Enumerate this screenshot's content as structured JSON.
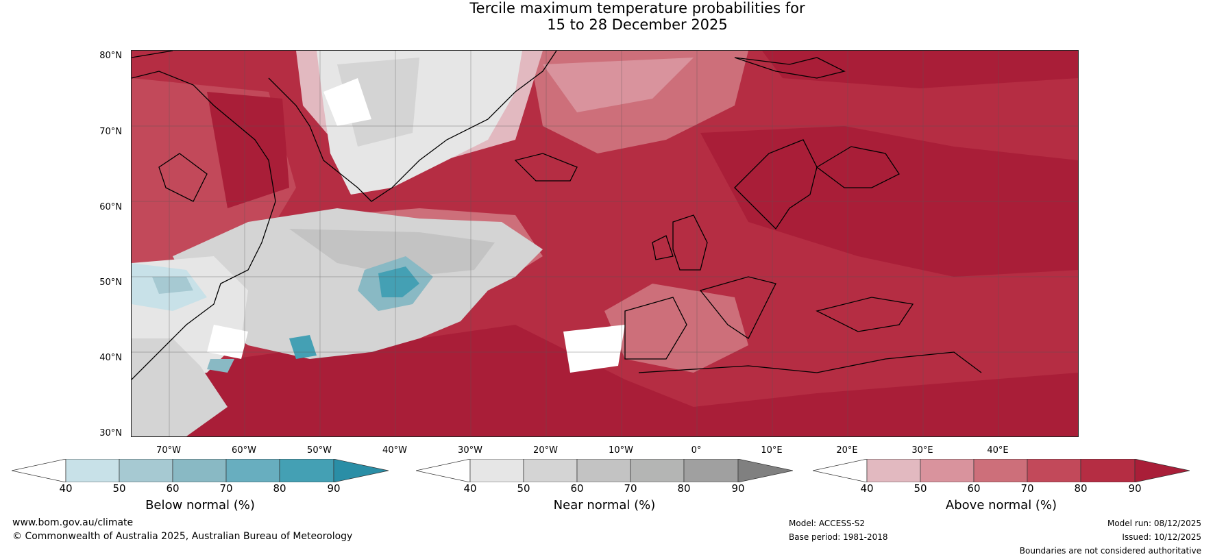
{
  "header": {
    "title_line1": "Tercile maximum temperature probabilities for",
    "title_line2": "15 to 28 December 2025"
  },
  "map": {
    "latitude_labels": [
      "80°N",
      "70°N",
      "60°N",
      "50°N",
      "40°N",
      "30°N"
    ],
    "longitude_labels": [
      "70°W",
      "60°W",
      "50°W",
      "40°W",
      "30°W",
      "20°W",
      "10°W",
      "0°",
      "10°E",
      "20°E",
      "30°E",
      "40°E"
    ]
  },
  "legend": {
    "tick_values": [
      "40",
      "50",
      "60",
      "70",
      "80",
      "90"
    ],
    "below": {
      "title": "Below normal (%)",
      "colors": [
        "#ffffff",
        "#c8e1e8",
        "#a6c9d2",
        "#89b9c4",
        "#68aebf",
        "#44a0b4",
        "#2a8ea6"
      ]
    },
    "near": {
      "title": "Near normal (%)",
      "colors": [
        "#ffffff",
        "#e6e6e6",
        "#d4d4d4",
        "#c3c3c3",
        "#b4b5b4",
        "#a0a0a0",
        "#808080"
      ]
    },
    "above": {
      "title": "Above normal (%)",
      "colors": [
        "#ffffff",
        "#e2b9c0",
        "#d9939d",
        "#cd6f7a",
        "#c2495a",
        "#b52d43",
        "#a91e38"
      ]
    }
  },
  "footer": {
    "website": "www.bom.gov.au/climate",
    "copyright": "© Commonwealth of Australia 2025, Australian Bureau of Meteorology",
    "model": "Model: ACCESS-S2",
    "base_period": "Base period: 1981-2018",
    "model_run": "Model run: 08/12/2025",
    "issued": "Issued: 10/12/2025",
    "disclaimer": "Boundaries are not considered authoritative"
  }
}
